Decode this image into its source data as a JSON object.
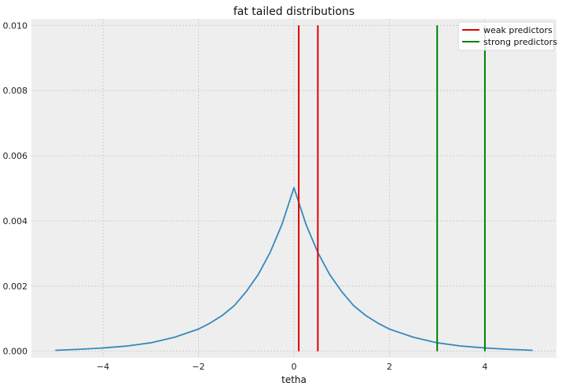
{
  "chart_data": {
    "type": "line",
    "title": "fat tailed distributions",
    "xlabel": "tetha",
    "ylabel": "",
    "xlim": [
      -5.5,
      5.5
    ],
    "ylim": [
      -0.0002,
      0.0102
    ],
    "grid": true,
    "legend_position": "top-right",
    "x_ticks": [
      -4,
      -2,
      0,
      2,
      4
    ],
    "x_tick_labels": [
      "−4",
      "−2",
      "0",
      "2",
      "4"
    ],
    "y_ticks": [
      0.0,
      0.002,
      0.004,
      0.006,
      0.008,
      0.01
    ],
    "y_tick_labels": [
      "0.000",
      "0.002",
      "0.004",
      "0.006",
      "0.008",
      "0.010"
    ],
    "curve": {
      "color": "#348abd",
      "x": [
        -5.0,
        -4.5,
        -4.0,
        -3.5,
        -3.0,
        -2.5,
        -2.0,
        -1.75,
        -1.5,
        -1.25,
        -1.0,
        -0.75,
        -0.5,
        -0.25,
        0.0,
        0.25,
        0.5,
        0.75,
        1.0,
        1.25,
        1.5,
        1.75,
        2.0,
        2.5,
        3.0,
        3.5,
        4.0,
        4.5,
        5.0
      ],
      "y": [
        3e-05,
        6e-05,
        0.0001,
        0.00016,
        0.00026,
        0.00043,
        0.00068,
        0.00087,
        0.0011,
        0.0014,
        0.00183,
        0.00235,
        0.00303,
        0.0039,
        0.00502,
        0.0039,
        0.00303,
        0.00235,
        0.00183,
        0.0014,
        0.0011,
        0.00087,
        0.00068,
        0.00043,
        0.00026,
        0.00016,
        0.0001,
        6e-05,
        3e-05
      ]
    },
    "vlines": [
      {
        "x": 0.1,
        "ymin": 0.0,
        "ymax": 0.01,
        "color": "#e00000",
        "group": "weak"
      },
      {
        "x": 0.5,
        "ymin": 0.0,
        "ymax": 0.01,
        "color": "#e00000",
        "group": "weak"
      },
      {
        "x": 3.0,
        "ymin": 0.0,
        "ymax": 0.01,
        "color": "#008000",
        "group": "strong"
      },
      {
        "x": 4.0,
        "ymin": 0.0,
        "ymax": 0.01,
        "color": "#008000",
        "group": "strong"
      }
    ],
    "legend": [
      {
        "label": "weak predictors",
        "color": "#e00000"
      },
      {
        "label": "strong predictors",
        "color": "#008000"
      }
    ]
  }
}
